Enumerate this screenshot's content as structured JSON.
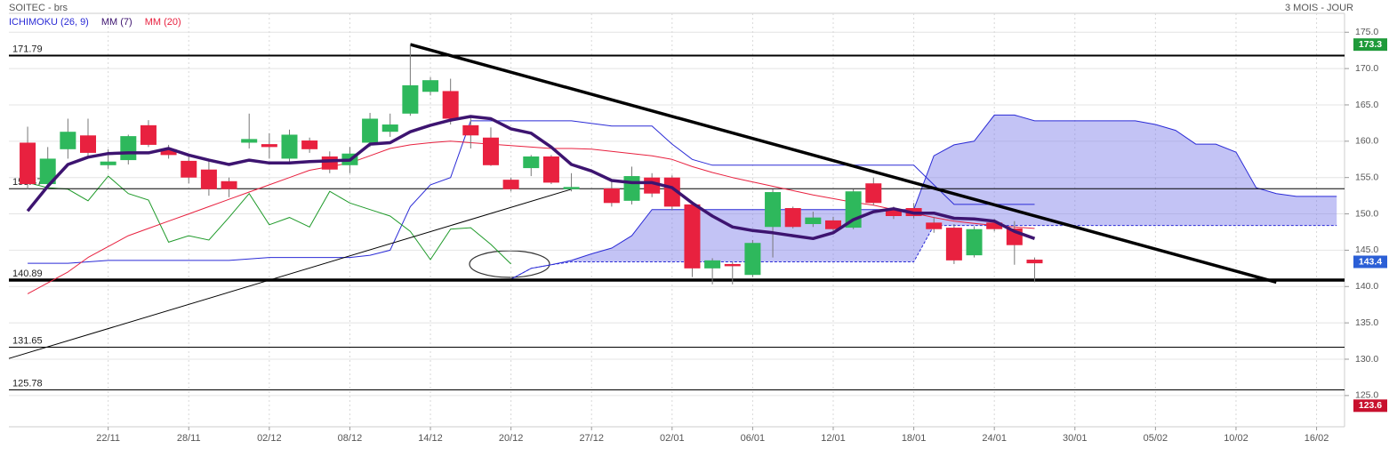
{
  "chart_data": {
    "type": "candlestick",
    "title": "SOITEC - brs",
    "subtitle": "3 MOIS - JOUR",
    "xlim": [
      -0.93,
      65.3
    ],
    "xticks": [
      {
        "value": 4,
        "label": "22/11"
      },
      {
        "value": 8,
        "label": "28/11"
      },
      {
        "value": 12,
        "label": "02/12"
      },
      {
        "value": 16,
        "label": "08/12"
      },
      {
        "value": 20,
        "label": "14/12"
      },
      {
        "value": 24,
        "label": "20/12"
      },
      {
        "value": 28,
        "label": "27/12"
      },
      {
        "value": 32,
        "label": "02/01"
      },
      {
        "value": 36,
        "label": "06/01"
      },
      {
        "value": 40,
        "label": "12/01"
      },
      {
        "value": 44,
        "label": "18/01"
      },
      {
        "value": 48,
        "label": "24/01"
      },
      {
        "value": 52,
        "label": "30/01"
      },
      {
        "value": 56,
        "label": "05/02"
      },
      {
        "value": 60,
        "label": "10/02"
      },
      {
        "value": 64,
        "label": "16/02"
      }
    ],
    "ylim": [
      120.7,
      177.6
    ],
    "yticks": [
      {
        "value": 125,
        "label": "125.0"
      },
      {
        "value": 130,
        "label": "130.0"
      },
      {
        "value": 135,
        "label": "135.0"
      },
      {
        "value": 140,
        "label": "140.0"
      },
      {
        "value": 145,
        "label": "145.0"
      },
      {
        "value": 150,
        "label": "150.0"
      },
      {
        "value": 155,
        "label": "155.0"
      },
      {
        "value": 160,
        "label": "160.0"
      },
      {
        "value": 165,
        "label": "165.0"
      },
      {
        "value": 170,
        "label": "170.0"
      },
      {
        "value": 175,
        "label": "175.0"
      }
    ],
    "grid": true,
    "candles": {
      "up_color": "#2eb85c",
      "down_color": "#e8213f",
      "x": [
        0,
        1,
        2,
        3,
        4,
        5,
        6,
        7,
        8,
        9,
        10,
        11,
        12,
        13,
        14,
        15,
        16,
        17,
        18,
        19,
        20,
        21,
        22,
        23,
        24,
        25,
        26,
        27,
        29,
        30,
        31,
        32,
        33,
        34,
        35,
        36,
        37,
        38,
        39,
        40,
        41,
        42,
        43,
        44,
        45,
        46,
        47,
        48,
        49,
        50
      ],
      "open": [
        159.8,
        154.1,
        158.9,
        160.8,
        156.7,
        157.4,
        162.2,
        158.9,
        157.3,
        156.1,
        154.5,
        159.8,
        159.6,
        157.6,
        160.1,
        157.9,
        156.7,
        159.8,
        161.3,
        163.8,
        166.8,
        166.9,
        162.2,
        160.5,
        154.7,
        156.3,
        157.9,
        153.4,
        153.5,
        151.8,
        155.0,
        155.0,
        151.3,
        142.5,
        143.1,
        141.6,
        148.2,
        150.8,
        148.6,
        149.1,
        148.1,
        154.2,
        150.5,
        150.8,
        148.8,
        148.1,
        144.3,
        148.8,
        148.0,
        143.7
      ],
      "high": [
        162.0,
        159.2,
        163.1,
        163.1,
        158.9,
        160.9,
        162.9,
        159.5,
        158.0,
        157.4,
        155.0,
        163.8,
        161.1,
        161.6,
        160.5,
        158.6,
        159.2,
        163.9,
        163.8,
        173.3,
        168.8,
        168.6,
        163.5,
        161.9,
        155.0,
        158.1,
        158.1,
        155.6,
        154.4,
        156.5,
        155.6,
        155.3,
        151.5,
        143.9,
        143.4,
        146.4,
        153.4,
        151.0,
        150.3,
        149.6,
        153.4,
        155.0,
        151.0,
        151.5,
        149.6,
        148.6,
        148.3,
        149.3,
        149.0,
        144.0
      ],
      "low": [
        153.4,
        153.4,
        157.6,
        157.6,
        156.2,
        156.8,
        159.2,
        157.6,
        154.2,
        152.5,
        152.3,
        159.0,
        157.6,
        156.8,
        158.4,
        155.6,
        155.6,
        159.2,
        160.6,
        163.5,
        166.3,
        162.3,
        159.0,
        156.6,
        153.1,
        155.2,
        154.1,
        153.1,
        151.0,
        151.3,
        152.3,
        150.5,
        141.3,
        140.3,
        140.3,
        141.3,
        144.0,
        148.0,
        148.2,
        147.5,
        147.9,
        151.2,
        149.3,
        149.4,
        147.4,
        143.1,
        144.0,
        147.6,
        143.0,
        140.6
      ],
      "close": [
        154.1,
        157.6,
        161.3,
        158.4,
        157.2,
        160.7,
        159.5,
        158.1,
        155.0,
        153.4,
        153.4,
        160.3,
        159.2,
        160.9,
        158.9,
        156.1,
        158.3,
        163.1,
        162.3,
        167.7,
        168.4,
        163.1,
        160.8,
        156.7,
        153.4,
        157.9,
        154.3,
        153.7,
        151.5,
        155.2,
        152.8,
        151.0,
        142.5,
        143.6,
        142.8,
        146.0,
        153.0,
        148.2,
        149.5,
        147.9,
        153.1,
        151.5,
        149.7,
        149.7,
        147.9,
        143.6,
        147.9,
        147.9,
        145.7,
        143.2
      ]
    },
    "ichimoku": {
      "name": "ICHIMOKU (26, 9)",
      "color": "#2b2bd6",
      "chikou_color": "#1f9a2a",
      "cloud_color": "#7a7ae8",
      "kijun_x": [
        0,
        2,
        4,
        6,
        8,
        10,
        12,
        14,
        16,
        17,
        18,
        19,
        20,
        21,
        22,
        23,
        25,
        27,
        29,
        31,
        32,
        33,
        34,
        36,
        38,
        40,
        42,
        44,
        45,
        46,
        48,
        50
      ],
      "kijun": [
        143.2,
        143.2,
        143.6,
        143.6,
        143.6,
        143.6,
        144.0,
        144.0,
        144.0,
        144.3,
        145.0,
        151.0,
        154.0,
        155.0,
        162.8,
        162.8,
        162.8,
        162.8,
        162.1,
        162.1,
        159.6,
        157.5,
        156.7,
        156.7,
        156.7,
        156.7,
        156.7,
        156.7,
        154.0,
        151.3,
        151.3,
        151.3
      ],
      "chikou_x": [
        0,
        1,
        2,
        3,
        4,
        5,
        6,
        7,
        8,
        9,
        10,
        11,
        12,
        13,
        14,
        15,
        16,
        17,
        18,
        19,
        20,
        21,
        22,
        23,
        24
      ],
      "chikou": [
        154.3,
        153.6,
        153.4,
        151.8,
        155.2,
        152.8,
        151.9,
        146.1,
        147.0,
        146.4,
        149.5,
        152.8,
        148.5,
        149.5,
        148.2,
        153.1,
        151.5,
        150.6,
        149.7,
        147.6,
        143.7,
        147.9,
        148.1,
        145.8,
        143.1
      ],
      "cloud_x": [
        24,
        25,
        26,
        27,
        28,
        29,
        30,
        31,
        32,
        33,
        34,
        35,
        36,
        37,
        38,
        39,
        40,
        41,
        42,
        43,
        44,
        45,
        46,
        47,
        48,
        49,
        50,
        51,
        52,
        53,
        54,
        55,
        56,
        57,
        58,
        59,
        60,
        61,
        62,
        63,
        64,
        65
      ],
      "upper": [
        141.0,
        142.5,
        143.0,
        143.6,
        144.5,
        145.3,
        147.0,
        150.6,
        150.6,
        150.6,
        150.6,
        150.6,
        150.6,
        150.6,
        150.6,
        150.6,
        150.6,
        150.6,
        150.6,
        150.6,
        150.6,
        158.0,
        159.5,
        160.0,
        163.6,
        163.6,
        162.8,
        162.8,
        162.8,
        162.8,
        162.8,
        162.8,
        162.3,
        161.5,
        159.6,
        159.6,
        158.5,
        153.6,
        152.8,
        152.4,
        152.4,
        152.4
      ],
      "lower": [
        141.0,
        142.5,
        143.0,
        143.4,
        143.4,
        143.4,
        143.4,
        143.4,
        143.4,
        143.4,
        143.4,
        143.4,
        143.4,
        143.4,
        143.4,
        143.4,
        143.4,
        143.4,
        143.4,
        143.4,
        143.4,
        148.4,
        148.4,
        148.4,
        148.4,
        148.4,
        148.4,
        148.4,
        148.4,
        148.4,
        148.4,
        148.4,
        148.4,
        148.4,
        148.4,
        148.4,
        148.4,
        148.4,
        148.4,
        148.4,
        148.4,
        148.4
      ]
    },
    "series": [
      {
        "name": "MM (7)",
        "color": "#3d1470",
        "x": [
          0,
          1,
          2,
          3,
          4,
          5,
          6,
          7,
          8,
          9,
          10,
          11,
          12,
          13,
          14,
          15,
          16,
          17,
          18,
          19,
          20,
          21,
          22,
          23,
          24,
          25,
          26,
          27,
          28,
          29,
          30,
          31,
          32,
          33,
          34,
          35,
          36,
          37,
          38,
          39,
          40,
          41,
          42,
          43,
          44,
          45,
          46,
          47,
          48,
          49,
          50
        ],
        "values": [
          150.4,
          153.8,
          156.8,
          157.8,
          158.3,
          158.4,
          158.4,
          159.0,
          158.1,
          157.4,
          156.8,
          157.4,
          157.0,
          157.0,
          157.2,
          157.3,
          157.4,
          159.6,
          159.8,
          161.3,
          162.2,
          162.9,
          163.4,
          163.1,
          161.7,
          161.1,
          159.2,
          156.8,
          155.9,
          154.6,
          154.3,
          154.3,
          153.6,
          151.5,
          149.7,
          148.2,
          147.7,
          147.4,
          147.0,
          146.6,
          147.4,
          149.2,
          150.3,
          150.7,
          150.1,
          150.1,
          149.4,
          149.3,
          149.0,
          147.6,
          146.6
        ]
      },
      {
        "name": "MM (20)",
        "color": "#e8213f",
        "x": [
          0,
          1,
          2,
          3,
          4,
          5,
          6,
          7,
          8,
          9,
          10,
          11,
          12,
          13,
          14,
          15,
          16,
          17,
          18,
          19,
          20,
          21,
          22,
          23,
          24,
          25,
          26,
          27,
          28,
          29,
          30,
          31,
          32,
          33,
          34,
          35,
          36,
          37,
          38,
          39,
          40,
          41,
          42,
          43,
          44,
          45,
          46,
          47,
          48,
          49,
          50
        ],
        "values": [
          139.0,
          140.5,
          142.0,
          144.0,
          145.5,
          147.0,
          148.0,
          149.0,
          150.0,
          151.0,
          152.0,
          153.0,
          154.0,
          155.0,
          156.0,
          156.5,
          157.0,
          158.0,
          159.0,
          159.5,
          159.8,
          160.0,
          159.8,
          159.6,
          159.4,
          159.2,
          159.0,
          159.0,
          158.9,
          158.6,
          158.3,
          158.0,
          157.5,
          156.5,
          155.7,
          155.0,
          154.4,
          153.8,
          153.2,
          152.6,
          152.1,
          151.6,
          151.2,
          150.6,
          150.1,
          149.5,
          149.0,
          148.7,
          148.4,
          148.2,
          148.0
        ]
      }
    ],
    "levels": [
      171.79,
      153.47,
      140.89,
      131.65,
      125.78
    ],
    "trendlines": [
      {
        "x": [
          19,
          62
        ],
        "y": [
          173.3,
          140.6
        ]
      },
      {
        "x": [
          -0.93,
          27
        ],
        "y": [
          130.1,
          153.4
        ]
      }
    ],
    "price_labels": [
      {
        "value": 173.3,
        "color": "#1f9a3a"
      },
      {
        "value": 143.4,
        "color": "#2b5fd6"
      },
      {
        "value": 123.6,
        "color": "#c8102e"
      }
    ]
  }
}
